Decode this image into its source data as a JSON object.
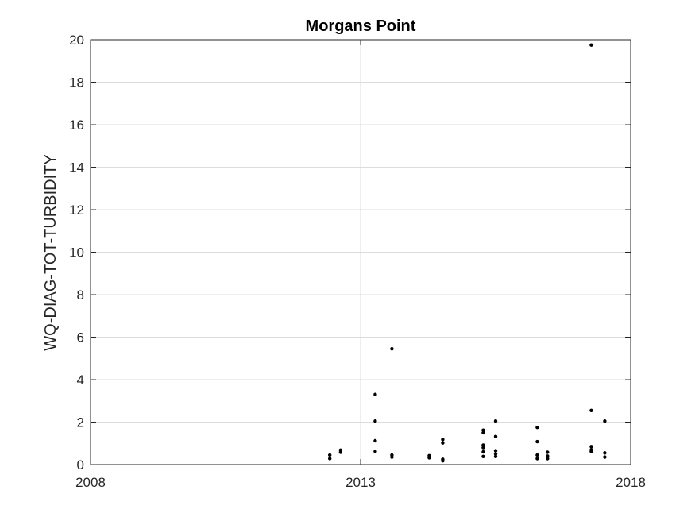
{
  "chart_data": {
    "type": "scatter",
    "title": "Morgans Point",
    "xlabel": "",
    "ylabel": "WQ-DIAG-TOT-TURBIDITY",
    "xlim": [
      2008,
      2018
    ],
    "ylim": [
      0,
      20
    ],
    "x_ticks": [
      "2008",
      "2013",
      "2018"
    ],
    "y_ticks": [
      "0",
      "2",
      "4",
      "6",
      "8",
      "10",
      "12",
      "14",
      "16",
      "18",
      "20"
    ],
    "x_tick_values": [
      2008,
      2013,
      2018
    ],
    "y_tick_values": [
      0,
      2,
      4,
      6,
      8,
      10,
      12,
      14,
      16,
      18,
      20
    ],
    "grid": true,
    "marker_color": "#000000",
    "grid_color": "#dcdcdc",
    "axis_color": "#262626",
    "series": [
      {
        "x": [
          2012.43,
          2012.43,
          2012.63,
          2012.63,
          2013.27,
          2013.27,
          2013.27,
          2013.27,
          2013.58,
          2013.58,
          2013.58,
          2014.27,
          2014.27,
          2014.52,
          2014.52,
          2014.52,
          2014.52,
          2015.27,
          2015.27,
          2015.27,
          2015.27,
          2015.27,
          2015.27,
          2015.5,
          2015.5,
          2015.5,
          2015.5,
          2015.5,
          2016.27,
          2016.27,
          2016.27,
          2016.27,
          2016.46,
          2016.46,
          2016.46,
          2017.27,
          2017.27,
          2017.27,
          2017.27,
          2017.27,
          2017.52,
          2017.52,
          2017.52
        ],
        "y": [
          0.45,
          0.28,
          0.68,
          0.58,
          3.3,
          2.05,
          1.12,
          0.62,
          5.45,
          0.45,
          0.35,
          0.42,
          0.32,
          1.18,
          1.02,
          0.25,
          0.18,
          1.62,
          1.5,
          0.92,
          0.8,
          0.6,
          0.38,
          2.05,
          1.32,
          0.65,
          0.5,
          0.38,
          1.75,
          1.08,
          0.45,
          0.28,
          0.58,
          0.4,
          0.28,
          19.75,
          2.55,
          0.85,
          0.7,
          0.62,
          2.05,
          0.55,
          0.35
        ]
      }
    ]
  }
}
